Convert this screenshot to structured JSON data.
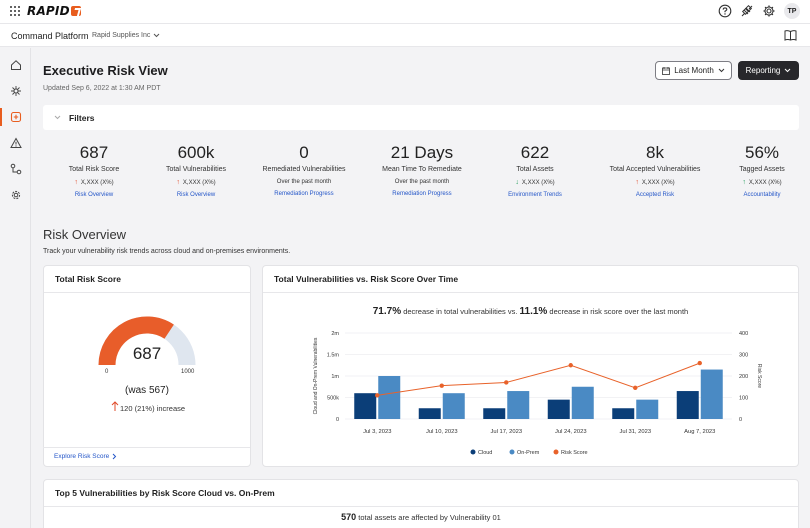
{
  "app": {
    "logo_text": "RAPID",
    "avatar_initials": "TP"
  },
  "subheader": {
    "platform": "Command Platform",
    "org": "Rapid Supplies Inc"
  },
  "icons": {
    "topbar": [
      "apps-grid-icon",
      "help-icon",
      "integrations-icon",
      "settings-icon"
    ],
    "sidebar": [
      "home-icon",
      "network-icon",
      "risk-icon",
      "alert-icon",
      "workflow-icon",
      "settings-icon"
    ]
  },
  "header": {
    "title": "Executive Risk View",
    "updated": "Updated Sep 6, 2022 at 1:30 AM PDT",
    "period_button": "Last Month",
    "reporting_button": "Reporting"
  },
  "filters": {
    "label": "Filters"
  },
  "kpis": [
    {
      "value": "687",
      "label": "Total Risk Score",
      "sub": "X,XXX (X%)",
      "trend": "up",
      "link": "Risk Overview"
    },
    {
      "value": "600k",
      "label": "Total Vulnerabilities",
      "sub": "X,XXX (X%)",
      "trend": "up",
      "link": "Risk Overview"
    },
    {
      "value": "0",
      "label": "Remediated Vulnerabilities",
      "sub": "Over the past month",
      "trend": "",
      "link": "Remediation Progress"
    },
    {
      "value": "21 Days",
      "label": "Mean Time To Remediate",
      "sub": "Over the past month",
      "trend": "",
      "link": "Remediation Progress"
    },
    {
      "value": "622",
      "label": "Total Assets",
      "sub": "X,XXX (X%)",
      "trend": "down",
      "link": "Environment Trends"
    },
    {
      "value": "8k",
      "label": "Total Accepted Vulnerabilities",
      "sub": "X,XXX (X%)",
      "trend": "up",
      "link": "Accepted Risk"
    },
    {
      "value": "56%",
      "label": "Tagged Assets",
      "sub": "X,XXX (X%)",
      "trend": "up-green",
      "link": "Accountability"
    }
  ],
  "risk_overview": {
    "title": "Risk Overview",
    "description": "Track your vulnerability risk trends across cloud and on-premises environments."
  },
  "total_risk_card": {
    "title": "Total Risk Score",
    "value": "687",
    "min_label": "0",
    "max_label": "1000",
    "was": "(was 567)",
    "change": "120 (21%) increase",
    "explore": "Explore Risk Score",
    "gauge_fraction": 0.687,
    "colors": {
      "fill": "#e85d2a",
      "track": "#dfe6ef"
    }
  },
  "vuln_chart_card": {
    "title": "Total Vulnerabilities vs. Risk Score Over Time",
    "summary_pct1": "71.7%",
    "summary_text1": " decrease in total vulnerabilities vs. ",
    "summary_pct2": "11.1%",
    "summary_text2": " decrease in risk score over the last month"
  },
  "chart_data": {
    "type": "bar",
    "categories": [
      "Jul 3, 2023",
      "Jul 10, 2023",
      "Jul 17, 2023",
      "Jul 24, 2023",
      "Jul 31, 2023",
      "Aug 7, 2023"
    ],
    "series": [
      {
        "name": "Cloud",
        "type": "bar",
        "axis": "left",
        "values": [
          600000,
          250000,
          250000,
          450000,
          250000,
          650000
        ],
        "color": "#0b3e78"
      },
      {
        "name": "On-Prem",
        "type": "bar",
        "axis": "left",
        "values": [
          1000000,
          600000,
          650000,
          750000,
          450000,
          1150000
        ],
        "color": "#4a8ac4"
      },
      {
        "name": "Risk Score",
        "type": "line",
        "axis": "right",
        "values": [
          110,
          155,
          170,
          250,
          145,
          260
        ],
        "color": "#e8622a"
      }
    ],
    "ylabel": "Cloud and On-Prem Vulnerabilities",
    "y2label": "Risk Score",
    "ylim": [
      0,
      2000000
    ],
    "y2lim": [
      0,
      400
    ],
    "yticks": [
      "0",
      "500k",
      "1m",
      "1.5m",
      "2m"
    ],
    "y2ticks": [
      "0",
      "100",
      "200",
      "300",
      "400"
    ],
    "legend_position": "bottom",
    "grid": true
  },
  "bottom_card": {
    "title": "Top 5 Vulnerabilities by Risk Score Cloud vs. On-Prem",
    "count": "570",
    "text": " total assets are affected by Vulnerability 01"
  }
}
